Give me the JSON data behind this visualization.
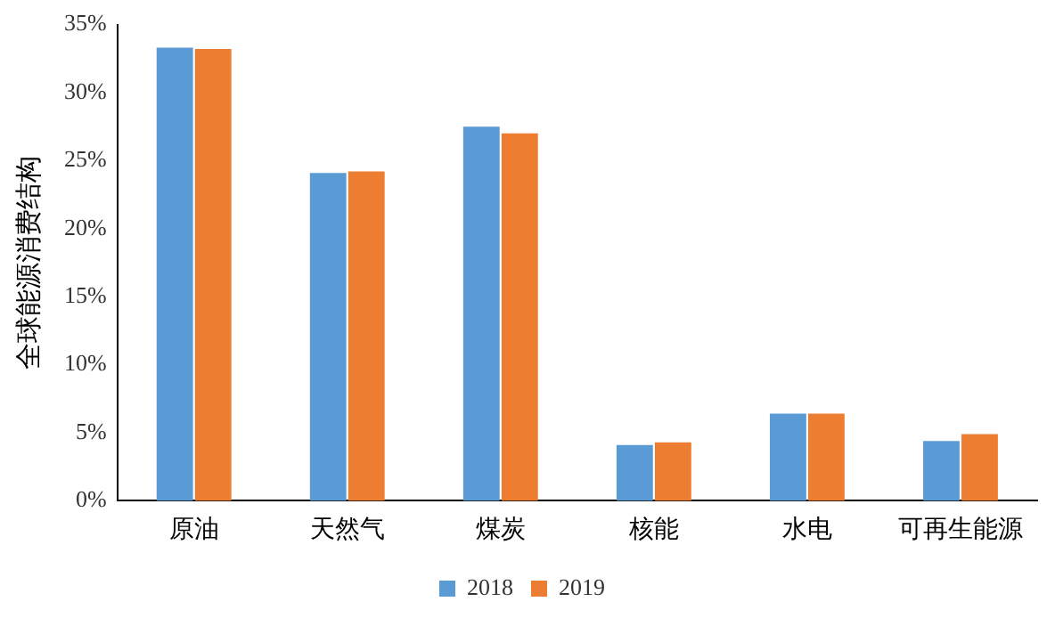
{
  "chart_data": {
    "type": "bar",
    "ylabel": "全球能源消费结构",
    "categories": [
      "原油",
      "天然气",
      "煤炭",
      "核能",
      "水电",
      "可再生能源"
    ],
    "series": [
      {
        "name": "2018",
        "color": "#5b9bd5",
        "values": [
          33.3,
          24.1,
          27.5,
          4.1,
          6.4,
          4.4
        ]
      },
      {
        "name": "2019",
        "color": "#ed7d31",
        "values": [
          33.2,
          24.2,
          27.0,
          4.3,
          6.4,
          4.9
        ]
      }
    ],
    "ylim": [
      0,
      35
    ],
    "yticks": [
      {
        "value": 0,
        "label": "0%"
      },
      {
        "value": 5,
        "label": "5%"
      },
      {
        "value": 10,
        "label": "10%"
      },
      {
        "value": 15,
        "label": "15%"
      },
      {
        "value": 20,
        "label": "20%"
      },
      {
        "value": 25,
        "label": "25%"
      },
      {
        "value": 30,
        "label": "30%"
      },
      {
        "value": 35,
        "label": "35%"
      }
    ],
    "grid": false,
    "legend": "bottom"
  }
}
